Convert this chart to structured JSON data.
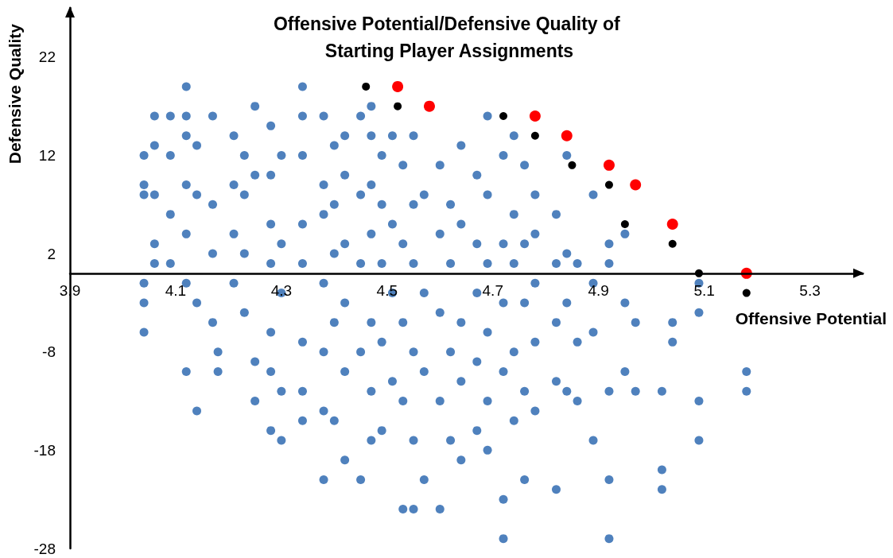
{
  "chart_data": {
    "type": "scatter",
    "title": "Offensive Potential/Defensive Quality of Starting Player Assignments",
    "xlabel": "Offensive Potential",
    "ylabel": "Defensive Quality",
    "xlim": [
      3.9,
      5.4
    ],
    "ylim": [
      -28,
      27
    ],
    "xticks": [
      3.9,
      4.1,
      4.3,
      4.5,
      4.7,
      4.9,
      5.1,
      5.3
    ],
    "yticks": [
      -28,
      -18,
      -8,
      2,
      12,
      22
    ],
    "grid": false,
    "marker": "circle",
    "series": [
      {
        "color": "#4f81bd",
        "x": [
          4.04,
          4.04,
          4.04,
          4.04,
          4.04,
          4.04,
          4.06,
          4.06,
          4.06,
          4.06,
          4.06,
          4.09,
          4.09,
          4.09,
          4.09,
          4.12,
          4.12,
          4.12,
          4.12,
          4.12,
          4.12,
          4.12,
          4.14,
          4.14,
          4.14,
          4.14,
          4.17,
          4.17,
          4.17,
          4.17,
          4.18,
          4.18,
          4.21,
          4.21,
          4.21,
          4.21,
          4.23,
          4.23,
          4.23,
          4.23,
          4.25,
          4.25,
          4.25,
          4.25,
          4.28,
          4.28,
          4.28,
          4.28,
          4.28,
          4.28,
          4.28,
          4.3,
          4.3,
          4.3,
          4.3,
          4.3,
          4.34,
          4.34,
          4.34,
          4.34,
          4.34,
          4.34,
          4.34,
          4.34,
          4.38,
          4.38,
          4.38,
          4.38,
          4.38,
          4.38,
          4.38,
          4.4,
          4.4,
          4.4,
          4.4,
          4.4,
          4.42,
          4.42,
          4.42,
          4.42,
          4.42,
          4.42,
          4.45,
          4.45,
          4.45,
          4.45,
          4.45,
          4.47,
          4.47,
          4.47,
          4.47,
          4.47,
          4.47,
          4.47,
          4.49,
          4.49,
          4.49,
          4.49,
          4.49,
          4.51,
          4.51,
          4.51,
          4.51,
          4.53,
          4.53,
          4.53,
          4.53,
          4.53,
          4.55,
          4.55,
          4.55,
          4.55,
          4.55,
          4.55,
          4.57,
          4.57,
          4.57,
          4.57,
          4.6,
          4.6,
          4.6,
          4.6,
          4.6,
          4.62,
          4.62,
          4.62,
          4.62,
          4.64,
          4.64,
          4.64,
          4.64,
          4.64,
          4.67,
          4.67,
          4.67,
          4.67,
          4.67,
          4.69,
          4.69,
          4.69,
          4.69,
          4.69,
          4.69,
          4.72,
          4.72,
          4.72,
          4.72,
          4.72,
          4.72,
          4.74,
          4.74,
          4.74,
          4.74,
          4.74,
          4.76,
          4.76,
          4.76,
          4.76,
          4.76,
          4.78,
          4.78,
          4.78,
          4.78,
          4.78,
          4.82,
          4.82,
          4.82,
          4.82,
          4.82,
          4.84,
          4.84,
          4.84,
          4.84,
          4.86,
          4.86,
          4.86,
          4.89,
          4.89,
          4.89,
          4.89,
          4.92,
          4.92,
          4.92,
          4.92,
          4.92,
          4.95,
          4.95,
          4.95,
          4.97,
          4.97,
          5.02,
          5.02,
          5.02,
          5.04,
          5.04,
          5.09,
          5.09,
          5.09,
          5.09,
          5.18,
          5.18
        ],
        "values": [
          12,
          9,
          8,
          -1,
          -3,
          -6,
          16,
          13,
          8,
          3,
          1,
          16,
          12,
          6,
          1,
          19,
          16,
          14,
          9,
          4,
          -1,
          -10,
          13,
          8,
          -3,
          -14,
          16,
          7,
          2,
          -5,
          -8,
          -10,
          14,
          9,
          4,
          -1,
          12,
          8,
          2,
          -4,
          17,
          10,
          -9,
          -13,
          15,
          10,
          5,
          1,
          -6,
          -10,
          -16,
          12,
          3,
          -2,
          -12,
          -17,
          19,
          16,
          12,
          5,
          1,
          -7,
          -12,
          -15,
          16,
          9,
          6,
          -1,
          -8,
          -14,
          -21,
          13,
          7,
          2,
          -5,
          -15,
          14,
          10,
          3,
          -3,
          -10,
          -19,
          16,
          8,
          1,
          -8,
          -21,
          17,
          14,
          9,
          4,
          -5,
          -12,
          -17,
          12,
          7,
          1,
          -7,
          -16,
          14,
          5,
          -2,
          -11,
          11,
          3,
          -5,
          -13,
          -24,
          14,
          7,
          1,
          -8,
          -17,
          -24,
          8,
          -2,
          -10,
          -21,
          11,
          4,
          -4,
          -13,
          -24,
          7,
          1,
          -8,
          -17,
          13,
          5,
          -5,
          -11,
          -19,
          10,
          3,
          -2,
          -9,
          -16,
          16,
          8,
          1,
          -6,
          -13,
          -18,
          12,
          3,
          -3,
          -10,
          -23,
          -27,
          14,
          6,
          1,
          -8,
          -15,
          11,
          3,
          -3,
          -12,
          -21,
          8,
          4,
          -1,
          -7,
          -14,
          6,
          1,
          -5,
          -11,
          -22,
          12,
          2,
          -3,
          -12,
          1,
          -7,
          -13,
          8,
          -1,
          -6,
          -17,
          3,
          1,
          -12,
          -21,
          -27,
          4,
          -3,
          -10,
          -5,
          -12,
          -12,
          -20,
          -22,
          -5,
          -7,
          -1,
          -4,
          -13,
          -17,
          -10,
          -12
        ]
      },
      {
        "color": "#000000",
        "x": [
          4.46,
          4.52,
          4.72,
          4.78,
          4.85,
          4.92,
          4.95,
          5.04,
          5.09,
          5.18
        ],
        "values": [
          19,
          17,
          16,
          14,
          11,
          9,
          5,
          3,
          0,
          -2
        ]
      },
      {
        "color": "#ff0000",
        "x": [
          4.52,
          4.58,
          4.78,
          4.84,
          4.92,
          4.97,
          5.04,
          5.18
        ],
        "values": [
          19,
          17,
          16,
          14,
          11,
          9,
          5,
          0
        ]
      }
    ]
  }
}
